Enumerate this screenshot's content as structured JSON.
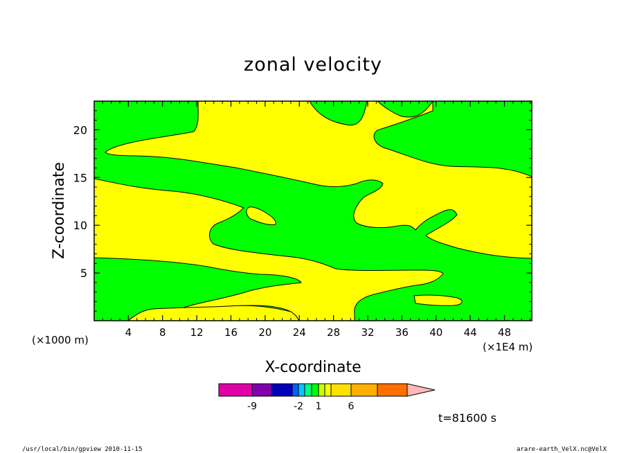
{
  "chart_data": {
    "type": "contour",
    "title": "zonal velocity",
    "xlabel": "X-coordinate",
    "ylabel": "Z-coordinate",
    "x_unit_left": "(×1000 m)",
    "x_unit_right": "(×1E4 m)",
    "xlim": [
      0,
      51.2
    ],
    "ylim": [
      0,
      23
    ],
    "x_ticks": [
      "4",
      "8",
      "12",
      "16",
      "20",
      "24",
      "28",
      "32",
      "36",
      "40",
      "44",
      "48"
    ],
    "x_tick_values": [
      4,
      8,
      12,
      16,
      20,
      24,
      28,
      32,
      36,
      40,
      44,
      48
    ],
    "y_ticks": [
      "5",
      "10",
      "15",
      "20"
    ],
    "y_tick_values": [
      5,
      10,
      15,
      20
    ],
    "fill_colors": {
      "positive_region": "#ffff00",
      "negative_region": "#00ff00"
    },
    "colorbar": {
      "colors": [
        "#e000a8",
        "#8000b0",
        "#0000b8",
        "#0060ff",
        "#00c8ff",
        "#00ff80",
        "#00ff00",
        "#c8ff00",
        "#ffff00",
        "#ffe000",
        "#ffb000",
        "#ff7000",
        "#ff1010",
        "#ff8080",
        "#ffb8b8"
      ],
      "labels": [
        "-9",
        "-2",
        "1",
        "6"
      ],
      "label_values": [
        -9,
        -2,
        1,
        6
      ],
      "extend": "max"
    },
    "time_label": "t=81600 s",
    "footer_left": "/usr/local/bin/gpview  2010-11-15",
    "footer_right": "arare-earth_VelX.nc@VelX"
  }
}
